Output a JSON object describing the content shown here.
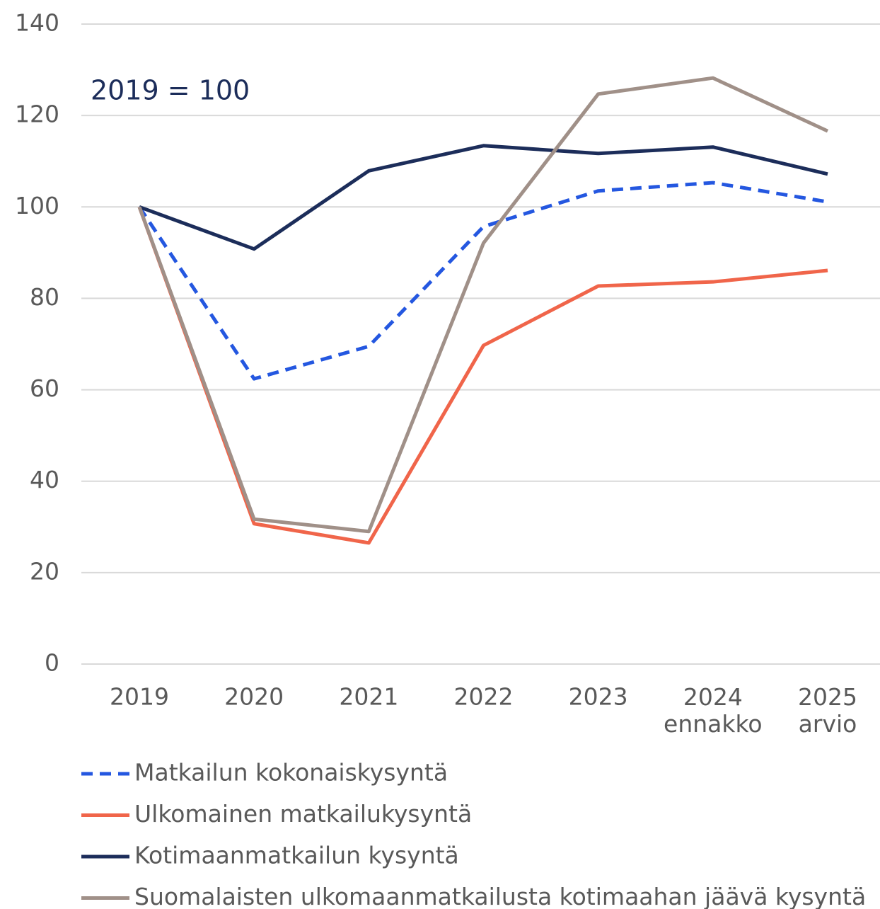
{
  "chart_data": {
    "type": "line",
    "annotation": "2019 = 100",
    "categories": [
      "2019",
      "2020",
      "2021",
      "2022",
      "2023",
      "2024\nennakko",
      "2025\narvio"
    ],
    "series": [
      {
        "name": "Matkailun kokonaiskysyntä",
        "color": "#2457e0",
        "dashed": true,
        "values": [
          100,
          62.4,
          69.5,
          95.7,
          103.5,
          105.3,
          101.1
        ]
      },
      {
        "name": "Ulkomainen matkailukysyntä",
        "color": "#f0654a",
        "dashed": false,
        "values": [
          100,
          30.7,
          26.5,
          69.7,
          82.7,
          83.6,
          86.1
        ]
      },
      {
        "name": "Kotimaanmatkailun kysyntä",
        "color": "#1c2d5a",
        "dashed": false,
        "values": [
          100,
          90.8,
          107.9,
          113.4,
          111.7,
          113.1,
          107.2
        ]
      },
      {
        "name": "Suomalaisten ulkomaanmatkailusta kotimaahan jäävä kysyntä",
        "color": "#a09088",
        "dashed": false,
        "values": [
          100,
          31.7,
          29.0,
          92.1,
          124.7,
          128.2,
          116.6
        ]
      }
    ],
    "ylim": [
      0,
      140
    ],
    "yticks": [
      0,
      20,
      40,
      60,
      80,
      100,
      120,
      140
    ],
    "grid": true
  }
}
